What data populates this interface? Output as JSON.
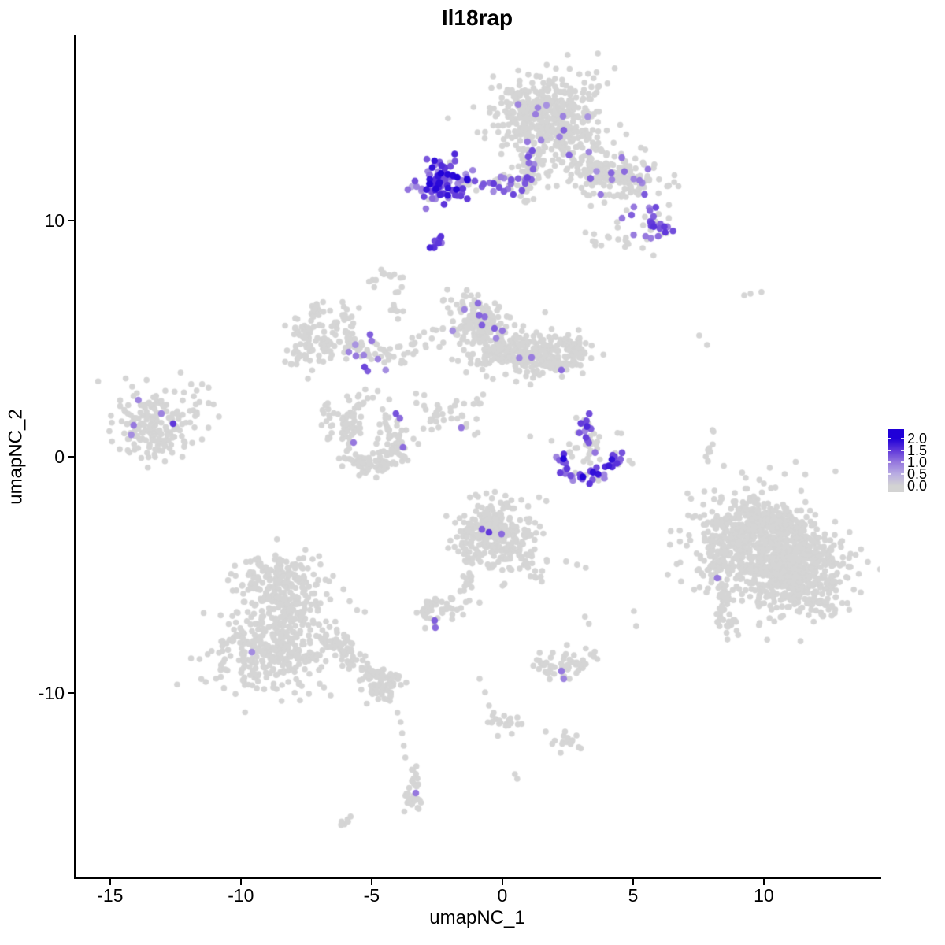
{
  "chart_data": {
    "type": "scatter",
    "title": "Il18rap",
    "xlabel": "umapNC_1",
    "ylabel": "umapNC_2",
    "x_ticks": [
      -15,
      -10,
      -5,
      0,
      5,
      10
    ],
    "y_ticks": [
      -10,
      0,
      10
    ],
    "x_range": [
      -16.35,
      14.43
    ],
    "y_range": [
      -17.83,
      17.83
    ],
    "grid": false,
    "background_point_color": "#d5d5d5",
    "color_scale": {
      "min": 0,
      "max": 2,
      "stops": [
        "#d3d3d3",
        "#b9ade2",
        "#9678de",
        "#6038da",
        "#2000d8"
      ]
    },
    "legend": {
      "tick_values": [
        2.0,
        1.5,
        1.0,
        0.5,
        0.0
      ],
      "tick_labels": [
        "2.0",
        "1.5",
        "1.0",
        "0.5",
        "0.0"
      ]
    },
    "clusters": [
      {
        "name": "il18rap-high-blob",
        "shape": "blob",
        "cx": -2.2,
        "cy": 11.67,
        "sx": 0.5,
        "sy": 0.42,
        "n": 95,
        "frac": 0.94,
        "vr": [
          0.7,
          2.0
        ]
      },
      {
        "name": "top-right-main",
        "shape": "blob",
        "cx": 1.87,
        "cy": 14.33,
        "sx": 1.05,
        "sy": 0.95,
        "n": 430,
        "frac": 0.008,
        "vr": [
          0.7,
          1.2
        ]
      },
      {
        "name": "top-right-west",
        "shape": "blob",
        "cx": 1.0,
        "cy": 14.6,
        "sx": 0.5,
        "sy": 0.5,
        "n": 80,
        "frac": 0.01,
        "vr": [
          0.7,
          1.0
        ]
      },
      {
        "name": "top-right-wing",
        "shape": "blob",
        "cx": 4.13,
        "cy": 11.93,
        "sx": 1.15,
        "sy": 0.45,
        "rot": -16,
        "n": 210,
        "frac": 0.05,
        "vr": [
          0.7,
          1.3
        ]
      },
      {
        "name": "wing-tip",
        "shape": "blob",
        "cx": 5.78,
        "cy": 9.77,
        "sx": 0.42,
        "sy": 0.35,
        "n": 30,
        "frac": 0.45,
        "vr": [
          0.8,
          1.6
        ]
      },
      {
        "name": "under-wing-a",
        "shape": "blob",
        "cx": 4.43,
        "cy": 9.2,
        "sx": 0.28,
        "sy": 0.2,
        "n": 9
      },
      {
        "name": "under-wing-b",
        "shape": "blob",
        "cx": 3.55,
        "cy": 9.0,
        "sx": 0.22,
        "sy": 0.18,
        "n": 6
      },
      {
        "name": "noodle-west",
        "shape": "blob",
        "cx": -7.7,
        "cy": 4.4,
        "sx": 0.3,
        "sy": 0.45,
        "n": 25
      },
      {
        "name": "middle-a",
        "shape": "blob",
        "cx": -0.95,
        "cy": 5.67,
        "sx": 0.62,
        "sy": 0.55,
        "n": 150,
        "frac": 0.02,
        "vr": [
          0.7,
          1.3
        ]
      },
      {
        "name": "middle-b",
        "shape": "blob",
        "cx": 0.15,
        "cy": 4.5,
        "sx": 0.75,
        "sy": 0.5,
        "n": 160,
        "frac": 0.01,
        "vr": [
          0.7,
          1.1
        ]
      },
      {
        "name": "middle-c",
        "shape": "blob",
        "cx": 1.8,
        "cy": 4.27,
        "sx": 0.65,
        "sy": 0.45,
        "n": 140,
        "frac": 0.008,
        "vr": [
          0.7,
          1.1
        ]
      },
      {
        "name": "middle-d",
        "shape": "blob",
        "cx": 2.75,
        "cy": 4.5,
        "sx": 0.3,
        "sy": 0.3,
        "n": 30
      },
      {
        "name": "middle-south",
        "shape": "blob",
        "cx": -0.8,
        "cy": 2.9,
        "sx": 0.35,
        "sy": 0.5,
        "n": 10
      },
      {
        "name": "left-island",
        "shape": "blob",
        "cx": -13.43,
        "cy": 1.4,
        "sx": 0.8,
        "sy": 0.72,
        "n": 170
      },
      {
        "name": "left-island-east",
        "shape": "blob",
        "cx": -11.55,
        "cy": 2.2,
        "sx": 0.35,
        "sy": 0.55,
        "n": 12
      },
      {
        "name": "bowl-nw",
        "shape": "blob",
        "cx": -6.33,
        "cy": 1.5,
        "sx": 0.4,
        "sy": 0.35,
        "n": 26
      },
      {
        "name": "bowl-top",
        "shape": "blob",
        "cx": -5.4,
        "cy": 2.3,
        "sx": 0.55,
        "sy": 0.3,
        "n": 18
      },
      {
        "name": "smile-bg",
        "shape": "blob",
        "cx": 3.3,
        "cy": 0.4,
        "sx": 0.8,
        "sy": 0.55,
        "n": 26
      },
      {
        "name": "right-big-a",
        "shape": "blob",
        "cx": 9.7,
        "cy": -3.63,
        "sx": 1.15,
        "sy": 1.0,
        "n": 520
      },
      {
        "name": "right-big-b",
        "shape": "blob",
        "cx": 11.2,
        "cy": -4.9,
        "sx": 1.05,
        "sy": 0.95,
        "n": 520
      },
      {
        "name": "right-big-top",
        "shape": "blob",
        "cx": 10.4,
        "cy": -2.9,
        "sx": 0.8,
        "sy": 0.4,
        "n": 80
      },
      {
        "name": "right-big-west",
        "shape": "blob",
        "cx": 8.3,
        "cy": -3.0,
        "sx": 0.3,
        "sy": 0.6,
        "n": 30
      },
      {
        "name": "bottom-left-top",
        "shape": "blob",
        "cx": -8.52,
        "cy": -4.9,
        "sx": 0.6,
        "sy": 0.35,
        "n": 60
      },
      {
        "name": "bottom-left-a",
        "shape": "blob",
        "cx": -8.43,
        "cy": -6.0,
        "sx": 1.0,
        "sy": 0.85,
        "n": 240
      },
      {
        "name": "bottom-left-b",
        "shape": "blob",
        "cx": -8.89,
        "cy": -8.3,
        "sx": 1.1,
        "sy": 0.85,
        "n": 310
      },
      {
        "name": "bl-arm-end",
        "shape": "blob",
        "cx": -4.55,
        "cy": -9.6,
        "sx": 0.4,
        "sy": 0.35,
        "n": 40
      },
      {
        "name": "center-bottom",
        "shape": "blob",
        "cx": -0.24,
        "cy": -3.4,
        "sx": 0.75,
        "sy": 0.8,
        "n": 260
      },
      {
        "name": "center-bottom-core",
        "shape": "blob",
        "cx": -0.5,
        "cy": -2.8,
        "sx": 0.5,
        "sy": 0.4,
        "n": 80
      },
      {
        "name": "small-mid",
        "shape": "blob",
        "cx": -2.44,
        "cy": -6.43,
        "sx": 0.5,
        "sy": 0.33,
        "n": 45
      },
      {
        "name": "south-trail-end",
        "shape": "blob",
        "cx": -3.43,
        "cy": -14.47,
        "sx": 0.28,
        "sy": 0.25,
        "n": 20
      },
      {
        "name": "south-center-east",
        "shape": "blob",
        "cx": 2.41,
        "cy": -8.87,
        "sx": 0.62,
        "sy": 0.3,
        "n": 55
      },
      {
        "name": "rt-blob-a",
        "shape": "blob",
        "cx": 0.0,
        "cy": -11.3,
        "sx": 0.3,
        "sy": 0.22,
        "n": 22
      },
      {
        "name": "rt-blob-b",
        "shape": "blob",
        "cx": 2.32,
        "cy": -12.0,
        "sx": 0.3,
        "sy": 0.2,
        "n": 14
      },
      {
        "name": "high-blob-trail",
        "shape": "line",
        "x1": -1.15,
        "y1": 11.5,
        "x2": 0.95,
        "y2": 11.65,
        "jit": 0.18,
        "n": 24,
        "frac": 0.5,
        "vr": [
          0.7,
          1.6
        ]
      },
      {
        "name": "high-streak-below",
        "shape": "line",
        "x1": -2.75,
        "y1": 8.67,
        "x2": -2.45,
        "y2": 9.23,
        "jit": 0.1,
        "n": 11,
        "frac": 0.95,
        "vr": [
          0.9,
          1.7
        ]
      },
      {
        "name": "top-right-neck",
        "shape": "line",
        "x1": 1.05,
        "y1": 13.1,
        "x2": 0.85,
        "y2": 10.9,
        "jit": 0.22,
        "n": 60,
        "frac": 0.12,
        "vr": [
          0.8,
          1.6
        ]
      },
      {
        "name": "hook-tail",
        "shape": "line",
        "x1": -4.25,
        "y1": 6.6,
        "x2": -3.74,
        "y2": 5.63,
        "jit": 0.1,
        "n": 8
      },
      {
        "name": "noodle-ne",
        "shape": "line",
        "x1": -6.25,
        "y1": 6.43,
        "x2": -5.55,
        "y2": 5.5,
        "jit": 0.12,
        "n": 9
      },
      {
        "name": "noodle-arm",
        "shape": "line",
        "x1": -6.1,
        "y1": 4.73,
        "x2": -4.2,
        "y2": 4.2,
        "jit": 0.22,
        "n": 40,
        "frac": 0.04,
        "vr": [
          0.7,
          1.1
        ]
      },
      {
        "name": "chain-upper",
        "shape": "line",
        "x1": -4.0,
        "y1": 4.3,
        "x2": -2.6,
        "y2": 4.9,
        "jit": 0.25,
        "n": 18
      },
      {
        "name": "chain-lower",
        "shape": "line",
        "x1": -3.3,
        "y1": 2.8,
        "x2": -1.9,
        "y2": 1.3,
        "jit": 0.28,
        "n": 14
      },
      {
        "name": "below-middle",
        "shape": "line",
        "x1": -2.0,
        "y1": 2.4,
        "x2": -1.2,
        "y2": 1.1,
        "jit": 0.25,
        "n": 12
      },
      {
        "name": "bowl-diag",
        "shape": "line",
        "x1": -3.25,
        "y1": 0.83,
        "x2": -1.7,
        "y2": 2.2,
        "jit": 0.15,
        "n": 10,
        "frac": 0.08,
        "vr": [
          0.8,
          1.2
        ]
      },
      {
        "name": "smile-stream",
        "shape": "line",
        "x1": 3.0,
        "y1": 1.87,
        "x2": 3.42,
        "y2": 0.3,
        "jit": 0.15,
        "n": 24,
        "frac": 0.5,
        "vr": [
          0.8,
          1.8
        ]
      },
      {
        "name": "right-big-tail",
        "shape": "line",
        "x1": 8.1,
        "y1": -3.9,
        "x2": 8.62,
        "y2": -7.47,
        "jit": 0.22,
        "n": 80
      },
      {
        "name": "right-upper-streak",
        "shape": "line",
        "x1": 8.07,
        "y1": 1.17,
        "x2": 7.83,
        "y2": -0.17,
        "jit": 0.1,
        "n": 9
      },
      {
        "name": "bl-arm",
        "shape": "line",
        "x1": -6.7,
        "y1": -7.6,
        "x2": -4.25,
        "y2": -9.9,
        "jit": 0.25,
        "n": 100
      },
      {
        "name": "cb-tail-left",
        "shape": "line",
        "x1": -1.1,
        "y1": -4.73,
        "x2": -1.63,
        "y2": -5.87,
        "jit": 0.08,
        "n": 8
      },
      {
        "name": "cb-tail-right",
        "shape": "line",
        "x1": 0.45,
        "y1": -3.9,
        "x2": 1.45,
        "y2": -5.3,
        "jit": 0.15,
        "n": 14
      },
      {
        "name": "south-trail",
        "shape": "line",
        "x1": -3.55,
        "y1": -12.93,
        "x2": -3.22,
        "y2": -14.0,
        "jit": 0.08,
        "n": 11
      },
      {
        "name": "sw-lone-streak",
        "shape": "line",
        "x1": -6.17,
        "y1": -15.6,
        "x2": -5.75,
        "y2": -15.23,
        "jit": 0.06,
        "n": 7
      },
      {
        "name": "hook9",
        "shape": "arc",
        "cx": -4.4,
        "cy": 7.3,
        "r": 0.48,
        "a1": -60,
        "a2": 200,
        "jit": 0.13,
        "n": 16
      },
      {
        "name": "noodle-ring",
        "shape": "arc",
        "cx": -6.93,
        "cy": 5.33,
        "r": 0.8,
        "a1": 60,
        "a2": 395,
        "jit": 0.3,
        "n": 95
      },
      {
        "name": "bowl-crescent",
        "shape": "arc",
        "cx": -5.12,
        "cy": 0.67,
        "r": 1.05,
        "a1": 120,
        "a2": 420,
        "jit": 0.28,
        "n": 150
      },
      {
        "name": "smile-arc",
        "shape": "arc",
        "cx": 3.31,
        "cy": 0.27,
        "r": 1.15,
        "a1": 185,
        "a2": 355,
        "jit": 0.18,
        "n": 45,
        "frac": 0.82,
        "vr": [
          0.8,
          2.0
        ]
      }
    ],
    "expressing_cells": [
      [
        -2.35,
        12.0,
        2.0
      ],
      [
        -3.28,
        11.43,
        0.9
      ],
      [
        -2.92,
        10.5,
        1.0
      ],
      [
        -3.46,
        11.43,
        0.5
      ],
      [
        -1.05,
        11.67,
        1.3
      ],
      [
        -0.78,
        11.43,
        1.2
      ],
      [
        -0.48,
        11.6,
        1.1
      ],
      [
        -0.12,
        11.4,
        1.3
      ],
      [
        0.21,
        11.33,
        1.0
      ],
      [
        0.96,
        13.33,
        1.0
      ],
      [
        1.48,
        13.4,
        0.9
      ],
      [
        1.36,
        14.77,
        0.9
      ],
      [
        1.02,
        12.43,
        1.1
      ],
      [
        1.11,
        11.73,
        1.2
      ],
      [
        0.75,
        11.27,
        1.3
      ],
      [
        0.42,
        11.1,
        1.4
      ],
      [
        0.06,
        11.23,
        1.2
      ],
      [
        3.76,
        11.1,
        1.0
      ],
      [
        4.67,
        12.07,
        1.1
      ],
      [
        5.57,
        12.17,
        1.0
      ],
      [
        3.37,
        11.77,
        0.9
      ],
      [
        4.19,
        11.73,
        0.9
      ],
      [
        3.31,
        12.9,
        0.9
      ],
      [
        4.94,
        10.23,
        1.2
      ],
      [
        4.58,
        10.1,
        1.0
      ],
      [
        5.03,
        10.57,
        1.0
      ],
      [
        5.69,
        9.77,
        1.4
      ],
      [
        6.02,
        9.67,
        1.3
      ],
      [
        5.78,
        10.17,
        1.2
      ],
      [
        6.23,
        9.5,
        1.5
      ],
      [
        5.96,
        9.33,
        1.1
      ],
      [
        5.48,
        9.33,
        1.0
      ],
      [
        6.32,
        9.73,
        1.0
      ],
      [
        -13.92,
        2.4,
        0.9
      ],
      [
        -13.04,
        1.83,
        0.9
      ],
      [
        -14.1,
        1.33,
        1.0
      ],
      [
        -14.19,
        0.93,
        0.8
      ],
      [
        -12.59,
        1.4,
        1.5
      ],
      [
        -5.06,
        5.17,
        1.2
      ],
      [
        -5.0,
        4.9,
        1.0
      ],
      [
        -5.87,
        4.43,
        0.9
      ],
      [
        -5.6,
        4.27,
        1.0
      ],
      [
        -5.3,
        4.3,
        0.9
      ],
      [
        -5.27,
        3.8,
        1.4
      ],
      [
        -5.15,
        3.63,
        1.2
      ],
      [
        -4.76,
        4.13,
        0.9
      ],
      [
        -4.46,
        3.67,
        0.8
      ],
      [
        -0.93,
        6.5,
        1.1
      ],
      [
        -1.45,
        6.23,
        0.9
      ],
      [
        -0.78,
        5.57,
        1.2
      ],
      [
        -0.3,
        5.43,
        1.2
      ],
      [
        0.0,
        5.33,
        1.0
      ],
      [
        -1.9,
        5.33,
        0.8
      ],
      [
        2.26,
        3.67,
        1.1
      ],
      [
        -4.07,
        1.83,
        1.3
      ],
      [
        -3.92,
        1.63,
        1.1
      ],
      [
        -5.69,
        0.6,
        1.0
      ],
      [
        -3.8,
        0.4,
        1.1
      ],
      [
        -1.57,
        1.23,
        1.0
      ],
      [
        4.58,
        0.17,
        1.3
      ],
      [
        4.52,
        -0.1,
        1.2
      ],
      [
        8.22,
        -5.13,
        1.0
      ],
      [
        -9.58,
        -8.27,
        0.8
      ],
      [
        -0.78,
        -3.07,
        1.2
      ],
      [
        -0.51,
        -3.2,
        1.5
      ],
      [
        -0.03,
        -3.27,
        1.1
      ],
      [
        -2.59,
        -6.93,
        1.2
      ],
      [
        -2.56,
        -7.23,
        1.1
      ],
      [
        -3.31,
        -14.23,
        1.0
      ],
      [
        2.26,
        -9.07,
        1.0
      ],
      [
        2.35,
        -9.4,
        0.9
      ]
    ],
    "background_cells": [
      [
        -11.9,
        3.07
      ],
      [
        -11.69,
        2.8
      ],
      [
        -11.48,
        3.07
      ],
      [
        -10.84,
        1.7
      ],
      [
        -12.14,
        0.6
      ],
      [
        7.53,
        5.13
      ],
      [
        7.83,
        4.73
      ],
      [
        9.25,
        6.83
      ],
      [
        9.49,
        6.9
      ],
      [
        9.91,
        6.97
      ],
      [
        -4.01,
        -10.83
      ],
      [
        -3.89,
        -11.23
      ],
      [
        -3.83,
        -11.7
      ],
      [
        -3.77,
        -12.23
      ],
      [
        -3.71,
        -12.73
      ],
      [
        -0.87,
        -9.4
      ],
      [
        -0.66,
        -9.97
      ],
      [
        -0.51,
        -10.53
      ],
      [
        -0.33,
        -10.83
      ],
      [
        1.66,
        -11.63
      ],
      [
        2.23,
        -12.53
      ],
      [
        0.48,
        -13.43
      ],
      [
        0.57,
        -13.63
      ],
      [
        1.93,
        -8.3
      ],
      [
        2.47,
        -7.97
      ],
      [
        3.16,
        -6.77
      ],
      [
        3.31,
        -7.07
      ],
      [
        5.03,
        -6.53
      ],
      [
        5.12,
        -7.17
      ],
      [
        2.44,
        -4.43
      ],
      [
        2.86,
        -4.57
      ],
      [
        3.19,
        -4.7
      ],
      [
        -5.48,
        6.3
      ]
    ]
  }
}
